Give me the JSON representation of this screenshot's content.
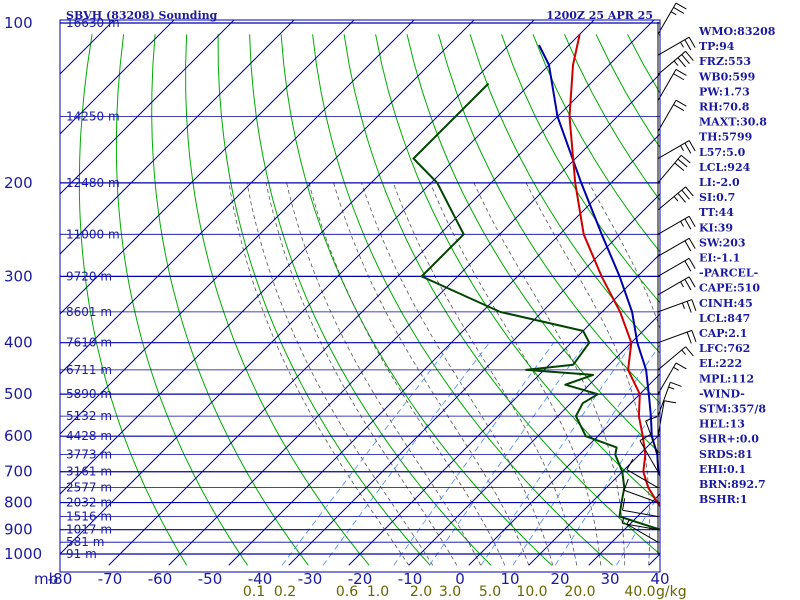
{
  "header": {
    "station": "SBVH (83208) Sounding",
    "time": "1200Z 25 APR 25"
  },
  "indices": [
    "WMO:83208",
    "TP:94",
    "FRZ:553",
    "WB0:599",
    "PW:1.73",
    "RH:70.8",
    "MAXT:30.8",
    "TH:5799",
    "L57:5.0",
    "LCL:924",
    "LI:-2.0",
    "SI:0.7",
    "TT:44",
    "KI:39",
    "SW:203",
    "EI:-1.1",
    "-PARCEL-",
    "CAPE:510",
    "CINH:45",
    "LCL:847",
    "CAP:2.1",
    "LFC:762",
    "EL:222",
    "MPL:112",
    "-WIND-",
    "STM:357/8",
    "HEL:13",
    "SHR+:0.0",
    "SRDS:81",
    "EHI:0.1",
    "BRN:892.7",
    "BSHR:1"
  ],
  "colors": {
    "temperature": "#cc0000",
    "dewpoint": "#004400",
    "parcel": "#0000aa",
    "isobar": "#0000aa",
    "isotherm": "#0000aa",
    "dry_adiabat": "#00aa00",
    "moist_adiabat": "#555555",
    "mixing_ratio": "#4488ff",
    "text": "#1a1aa0"
  },
  "chart_data": {
    "type": "skew-t",
    "pressure_levels": [
      "100",
      "200",
      "300",
      "400",
      "500",
      "600",
      "700",
      "800",
      "900",
      "1000"
    ],
    "pressure_label": "mb",
    "temperature_ticks": [
      "-80",
      "-70",
      "-60",
      "-50",
      "-40",
      "-30",
      "-20",
      "-10",
      "0",
      "10",
      "20",
      "30",
      "40"
    ],
    "temperature_tick_values": [
      -80,
      -70,
      -60,
      -50,
      -40,
      -30,
      -20,
      -10,
      0,
      10,
      20,
      30,
      40
    ],
    "height_labels": [
      {
        "p": 100,
        "label": "16630 m"
      },
      {
        "p": 150,
        "label": "14250 m"
      },
      {
        "p": 200,
        "label": "12480 m"
      },
      {
        "p": 250,
        "label": "11000 m"
      },
      {
        "p": 300,
        "label": "9720 m"
      },
      {
        "p": 350,
        "label": "8601 m"
      },
      {
        "p": 400,
        "label": "7610 m"
      },
      {
        "p": 450,
        "label": "6711 m"
      },
      {
        "p": 500,
        "label": "5890 m"
      },
      {
        "p": 550,
        "label": "5132 m"
      },
      {
        "p": 600,
        "label": "4428 m"
      },
      {
        "p": 650,
        "label": "3773 m"
      },
      {
        "p": 700,
        "label": "3161 m"
      },
      {
        "p": 750,
        "label": "2577 m"
      },
      {
        "p": 800,
        "label": "2032 m"
      },
      {
        "p": 850,
        "label": "1516 m"
      },
      {
        "p": 900,
        "label": "1017 m"
      },
      {
        "p": 950,
        "label": "581 m"
      },
      {
        "p": 1000,
        "label": "91 m"
      }
    ],
    "mixing_ratio_labels": [
      "0.1",
      "0.2",
      "0.6",
      "1.0",
      "2.0",
      "3.0",
      "5.0",
      "10.0",
      "20.0",
      "40.0"
    ],
    "mixing_ratio_values": [
      0.1,
      0.2,
      0.6,
      1.0,
      2.0,
      3.0,
      5.0,
      10.0,
      20.0,
      40.0
    ],
    "mixing_ratio_unit": "g/kg",
    "temperature": [
      {
        "p": 956,
        "t": 23.5
      },
      {
        "p": 925,
        "t": 21
      },
      {
        "p": 900,
        "t": 19
      },
      {
        "p": 850,
        "t": 15
      },
      {
        "p": 800,
        "t": 11
      },
      {
        "p": 750,
        "t": 7
      },
      {
        "p": 700,
        "t": 3.5
      },
      {
        "p": 650,
        "t": 1
      },
      {
        "p": 600,
        "t": -2.5
      },
      {
        "p": 550,
        "t": -6.5
      },
      {
        "p": 500,
        "t": -10
      },
      {
        "p": 450,
        "t": -16
      },
      {
        "p": 400,
        "t": -20
      },
      {
        "p": 350,
        "t": -27
      },
      {
        "p": 300,
        "t": -36
      },
      {
        "p": 250,
        "t": -46
      },
      {
        "p": 200,
        "t": -56
      },
      {
        "p": 150,
        "t": -68
      },
      {
        "p": 120,
        "t": -76
      },
      {
        "p": 105,
        "t": -80
      }
    ],
    "dewpoint": [
      {
        "p": 956,
        "t": 20.5
      },
      {
        "p": 925,
        "t": 19.5
      },
      {
        "p": 900,
        "t": 16
      },
      {
        "p": 850,
        "t": 7
      },
      {
        "p": 800,
        "t": 5
      },
      {
        "p": 750,
        "t": 3
      },
      {
        "p": 700,
        "t": 0
      },
      {
        "p": 650,
        "t": -4
      },
      {
        "p": 630,
        "t": -5
      },
      {
        "p": 600,
        "t": -12
      },
      {
        "p": 550,
        "t": -17
      },
      {
        "p": 520,
        "t": -18
      },
      {
        "p": 500,
        "t": -17
      },
      {
        "p": 480,
        "t": -24
      },
      {
        "p": 460,
        "t": -21
      },
      {
        "p": 450,
        "t": -33
      },
      {
        "p": 440,
        "t": -26
      },
      {
        "p": 400,
        "t": -27
      },
      {
        "p": 380,
        "t": -30
      },
      {
        "p": 350,
        "t": -47
      },
      {
        "p": 300,
        "t": -66
      },
      {
        "p": 250,
        "t": -66
      },
      {
        "p": 200,
        "t": -79
      },
      {
        "p": 180,
        "t": -87
      },
      {
        "p": 130,
        "t": -87
      }
    ],
    "parcel": [
      {
        "p": 956,
        "t": 26.5
      },
      {
        "p": 900,
        "t": 20
      },
      {
        "p": 850,
        "t": 16
      },
      {
        "p": 800,
        "t": 13
      },
      {
        "p": 750,
        "t": 10
      },
      {
        "p": 700,
        "t": 6
      },
      {
        "p": 650,
        "t": 3
      },
      {
        "p": 600,
        "t": -1
      },
      {
        "p": 550,
        "t": -4.5
      },
      {
        "p": 500,
        "t": -8.5
      },
      {
        "p": 450,
        "t": -13
      },
      {
        "p": 400,
        "t": -19
      },
      {
        "p": 350,
        "t": -25
      },
      {
        "p": 300,
        "t": -33
      },
      {
        "p": 250,
        "t": -43
      },
      {
        "p": 200,
        "t": -55
      },
      {
        "p": 150,
        "t": -70
      },
      {
        "p": 120,
        "t": -80
      },
      {
        "p": 110,
        "t": -85
      }
    ],
    "wind_barbs": [
      {
        "p": 105,
        "dir": 330,
        "spd": 25
      },
      {
        "p": 115,
        "dir": 300,
        "spd": 25
      },
      {
        "p": 125,
        "dir": 310,
        "spd": 35
      },
      {
        "p": 140,
        "dir": 330,
        "spd": 20
      },
      {
        "p": 160,
        "dir": 330,
        "spd": 20
      },
      {
        "p": 180,
        "dir": 300,
        "spd": 25
      },
      {
        "p": 200,
        "dir": 320,
        "spd": 30
      },
      {
        "p": 225,
        "dir": 310,
        "spd": 35
      },
      {
        "p": 250,
        "dir": 300,
        "spd": 25
      },
      {
        "p": 275,
        "dir": 300,
        "spd": 20
      },
      {
        "p": 300,
        "dir": 300,
        "spd": 20
      },
      {
        "p": 325,
        "dir": 300,
        "spd": 25
      },
      {
        "p": 350,
        "dir": 290,
        "spd": 25
      },
      {
        "p": 400,
        "dir": 290,
        "spd": 20
      },
      {
        "p": 450,
        "dir": 310,
        "spd": 15
      },
      {
        "p": 500,
        "dir": 330,
        "spd": 15
      },
      {
        "p": 550,
        "dir": 340,
        "spd": 15
      },
      {
        "p": 600,
        "dir": 350,
        "spd": 10
      },
      {
        "p": 650,
        "dir": 20,
        "spd": 10
      },
      {
        "p": 700,
        "dir": 30,
        "spd": 10
      },
      {
        "p": 750,
        "dir": 60,
        "spd": 10
      },
      {
        "p": 800,
        "dir": 70,
        "spd": 10
      },
      {
        "p": 850,
        "dir": 80,
        "spd": 10
      },
      {
        "p": 900,
        "dir": 80,
        "spd": 5
      },
      {
        "p": 950,
        "dir": 60,
        "spd": 5
      }
    ]
  }
}
